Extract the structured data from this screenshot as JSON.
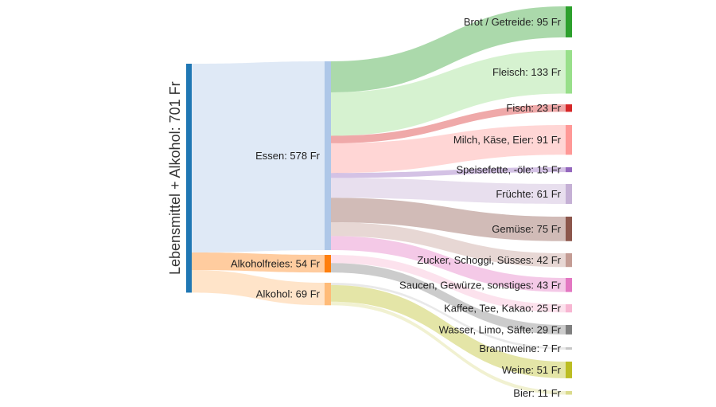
{
  "diagram": {
    "type": "sankey",
    "unit": "Fr",
    "link_opacity": 0.4,
    "nodes": [
      {
        "id": "root",
        "label": "Lebensmittel + Alkohol: 701 Fr",
        "value": 701,
        "color": "#1f77b4",
        "column": 0
      },
      {
        "id": "essen",
        "label": "Essen: 578 Fr",
        "value": 578,
        "color": "#aec7e8",
        "column": 1
      },
      {
        "id": "alkfrei",
        "label": "Alkoholfreies: 54 Fr",
        "value": 54,
        "color": "#ff7f0e",
        "column": 1
      },
      {
        "id": "alkohol",
        "label": "Alkohol: 69 Fr",
        "value": 69,
        "color": "#ffbb78",
        "column": 1
      },
      {
        "id": "brot",
        "label": "Brot / Getreide: 95 Fr",
        "value": 95,
        "color": "#2ca02c",
        "column": 2
      },
      {
        "id": "fleisch",
        "label": "Fleisch: 133 Fr",
        "value": 133,
        "color": "#98df8a",
        "column": 2
      },
      {
        "id": "fisch",
        "label": "Fisch: 23 Fr",
        "value": 23,
        "color": "#d62728",
        "column": 2
      },
      {
        "id": "milch",
        "label": "Milch, Käse, Eier: 91 Fr",
        "value": 91,
        "color": "#ff9896",
        "column": 2
      },
      {
        "id": "fette",
        "label": "Speisefette, -öle: 15 Fr",
        "value": 15,
        "color": "#9467bd",
        "column": 2
      },
      {
        "id": "fruechte",
        "label": "Früchte: 61 Fr",
        "value": 61,
        "color": "#c5b0d5",
        "column": 2
      },
      {
        "id": "gemuese",
        "label": "Gemüse: 75 Fr",
        "value": 75,
        "color": "#8c564b",
        "column": 2
      },
      {
        "id": "zucker",
        "label": "Zucker, Schoggi, Süsses: 42 Fr",
        "value": 42,
        "color": "#c49c94",
        "column": 2
      },
      {
        "id": "saucen",
        "label": "Saucen, Gewürze, sonstiges: 43 Fr",
        "value": 43,
        "color": "#e377c2",
        "column": 2
      },
      {
        "id": "kaffee",
        "label": "Kaffee, Tee, Kakao: 25 Fr",
        "value": 25,
        "color": "#f7b6d2",
        "column": 2
      },
      {
        "id": "wasser",
        "label": "Wasser, Limo, Säfte: 29 Fr",
        "value": 29,
        "color": "#7f7f7f",
        "column": 2
      },
      {
        "id": "brannt",
        "label": "Branntweine: 7 Fr",
        "value": 7,
        "color": "#c7c7c7",
        "column": 2
      },
      {
        "id": "weine",
        "label": "Weine: 51 Fr",
        "value": 51,
        "color": "#bcbd22",
        "column": 2
      },
      {
        "id": "bier",
        "label": "Bier: 11 Fr",
        "value": 11,
        "color": "#dbdb8d",
        "column": 2
      }
    ],
    "links": [
      {
        "source": "root",
        "target": "essen",
        "value": 578
      },
      {
        "source": "root",
        "target": "alkfrei",
        "value": 54
      },
      {
        "source": "root",
        "target": "alkohol",
        "value": 69
      },
      {
        "source": "essen",
        "target": "brot",
        "value": 95
      },
      {
        "source": "essen",
        "target": "fleisch",
        "value": 133
      },
      {
        "source": "essen",
        "target": "fisch",
        "value": 23
      },
      {
        "source": "essen",
        "target": "milch",
        "value": 91
      },
      {
        "source": "essen",
        "target": "fette",
        "value": 15
      },
      {
        "source": "essen",
        "target": "fruechte",
        "value": 61
      },
      {
        "source": "essen",
        "target": "gemuese",
        "value": 75
      },
      {
        "source": "essen",
        "target": "zucker",
        "value": 42
      },
      {
        "source": "essen",
        "target": "saucen",
        "value": 43
      },
      {
        "source": "alkfrei",
        "target": "kaffee",
        "value": 25
      },
      {
        "source": "alkfrei",
        "target": "wasser",
        "value": 29
      },
      {
        "source": "alkohol",
        "target": "brannt",
        "value": 7
      },
      {
        "source": "alkohol",
        "target": "weine",
        "value": 51
      },
      {
        "source": "alkohol",
        "target": "bier",
        "value": 11
      }
    ]
  }
}
